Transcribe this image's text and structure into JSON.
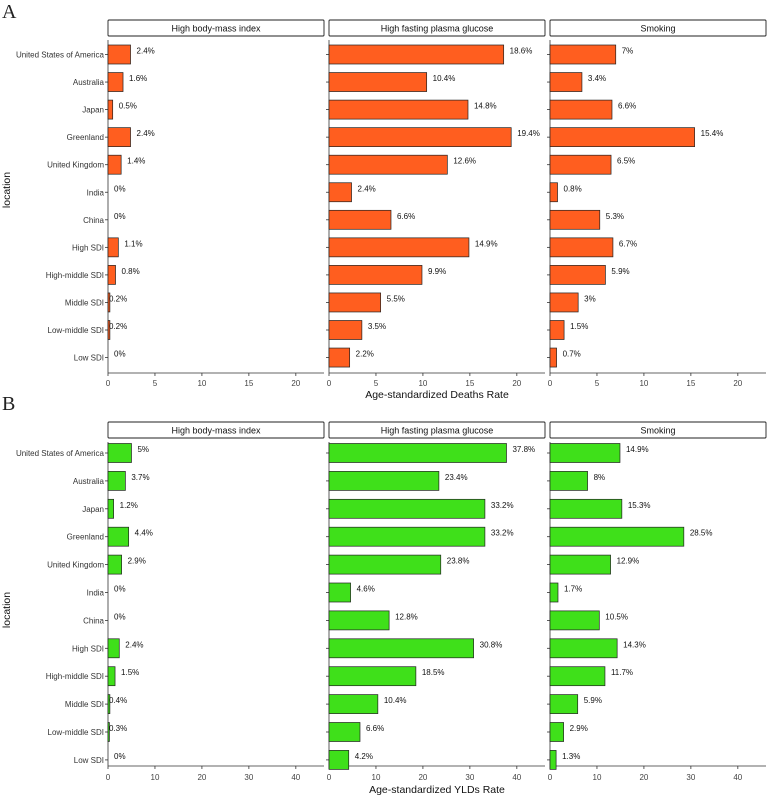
{
  "chart_data": [
    {
      "type": "bar",
      "panel_letter": "A",
      "xlabel": "Age-standardized Deaths Rate",
      "ylabel": "location",
      "xlim": [
        0,
        23
      ],
      "xticks": [
        0,
        5,
        10,
        15,
        20
      ],
      "bar_color": "#FF5E1F",
      "categories": [
        "United States of America",
        "Australia",
        "Japan",
        "Greenland",
        "United Kingdom",
        "India",
        "China",
        "High SDI",
        "High-middle SDI",
        "Middle SDI",
        "Low-middle SDI",
        "Low SDI"
      ],
      "facets": [
        {
          "name": "High body-mass index",
          "values": [
            2.4,
            1.6,
            0.5,
            2.4,
            1.4,
            0,
            0,
            1.1,
            0.8,
            0.2,
            0.2,
            0
          ],
          "labels": [
            "2.4%",
            "1.6%",
            "0.5%",
            "2.4%",
            "1.4%",
            "0%",
            "0%",
            "1.1%",
            "0.8%",
            "0.2%",
            "0.2%",
            "0%"
          ]
        },
        {
          "name": "High fasting plasma glucose",
          "values": [
            18.6,
            10.4,
            14.8,
            19.4,
            12.6,
            2.4,
            6.6,
            14.9,
            9.9,
            5.5,
            3.5,
            2.2
          ],
          "labels": [
            "18.6%",
            "10.4%",
            "14.8%",
            "19.4%",
            "12.6%",
            "2.4%",
            "6.6%",
            "14.9%",
            "9.9%",
            "5.5%",
            "3.5%",
            "2.2%"
          ]
        },
        {
          "name": "Smoking",
          "values": [
            7,
            3.4,
            6.6,
            15.4,
            6.5,
            0.8,
            5.3,
            6.7,
            5.9,
            3,
            1.5,
            0.7
          ],
          "labels": [
            "7%",
            "3.4%",
            "6.6%",
            "15.4%",
            "6.5%",
            "0.8%",
            "5.3%",
            "6.7%",
            "5.9%",
            "3%",
            "1.5%",
            "0.7%"
          ]
        }
      ]
    },
    {
      "type": "bar",
      "panel_letter": "B",
      "xlabel": "Age-standardized YLDs Rate",
      "ylabel": "location",
      "xlim": [
        0,
        46
      ],
      "xticks": [
        0,
        10,
        20,
        30,
        40
      ],
      "bar_color": "#3FE01A",
      "categories": [
        "United States of America",
        "Australia",
        "Japan",
        "Greenland",
        "United Kingdom",
        "India",
        "China",
        "High SDI",
        "High-middle SDI",
        "Middle SDI",
        "Low-middle SDI",
        "Low SDI"
      ],
      "facets": [
        {
          "name": "High body-mass index",
          "values": [
            5,
            3.7,
            1.2,
            4.4,
            2.9,
            0,
            0,
            2.4,
            1.5,
            0.4,
            0.3,
            0
          ],
          "labels": [
            "5%",
            "3.7%",
            "1.2%",
            "4.4%",
            "2.9%",
            "0%",
            "0%",
            "2.4%",
            "1.5%",
            "0.4%",
            "0.3%",
            "0%"
          ]
        },
        {
          "name": "High fasting plasma glucose",
          "values": [
            37.8,
            23.4,
            33.2,
            33.2,
            23.8,
            4.6,
            12.8,
            30.8,
            18.5,
            10.4,
            6.6,
            4.2
          ],
          "labels": [
            "37.8%",
            "23.4%",
            "33.2%",
            "33.2%",
            "23.8%",
            "4.6%",
            "12.8%",
            "30.8%",
            "18.5%",
            "10.4%",
            "6.6%",
            "4.2%"
          ]
        },
        {
          "name": "Smoking",
          "values": [
            14.9,
            8,
            15.3,
            28.5,
            12.9,
            1.7,
            10.5,
            14.3,
            11.7,
            5.9,
            2.9,
            1.3
          ],
          "labels": [
            "14.9%",
            "8%",
            "15.3%",
            "28.5%",
            "12.9%",
            "1.7%",
            "10.5%",
            "14.3%",
            "11.7%",
            "5.9%",
            "2.9%",
            "1.3%"
          ]
        }
      ]
    }
  ]
}
